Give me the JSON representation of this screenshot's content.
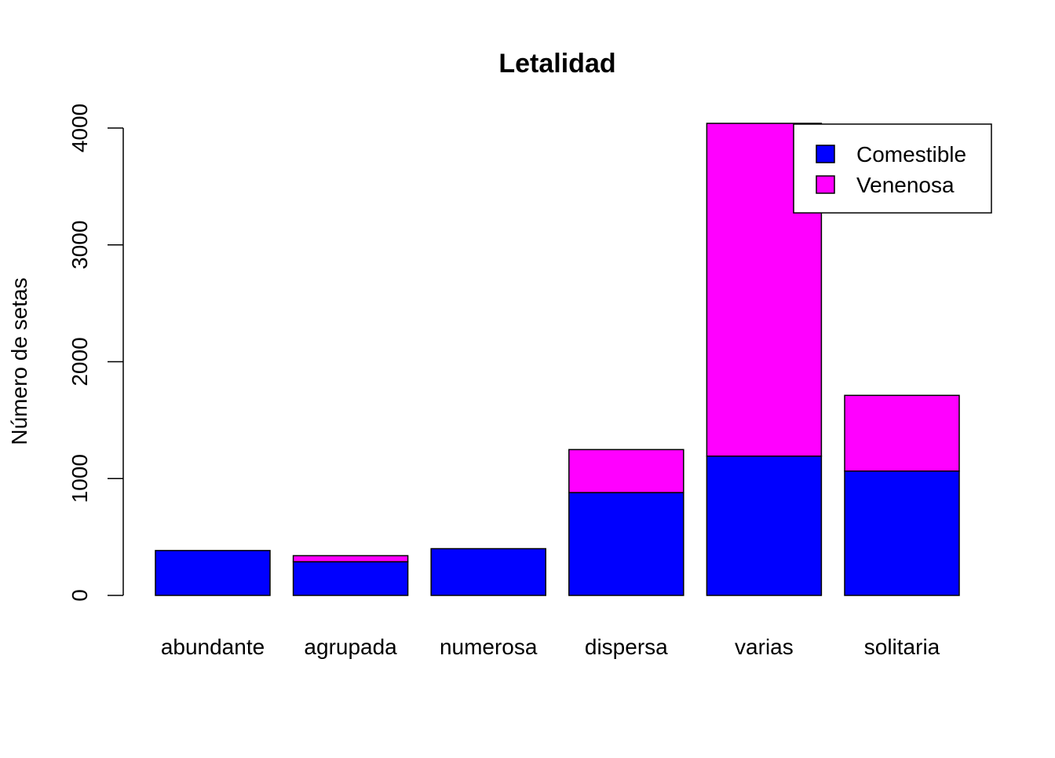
{
  "chart_data": {
    "type": "bar",
    "stacked": true,
    "title": "Letalidad",
    "xlabel": "",
    "ylabel": "Número de setas",
    "ylim": [
      0,
      4000
    ],
    "yticks": [
      0,
      1000,
      2000,
      3000,
      4000
    ],
    "ytick_labels": [
      "0",
      "1000",
      "2000",
      "3000",
      "4000"
    ],
    "categories": [
      "abundante",
      "agrupada",
      "numerosa",
      "dispersa",
      "varias",
      "solitaria"
    ],
    "series": [
      {
        "name": "Comestible",
        "color": "#0000ff",
        "values": [
          384,
          288,
          400,
          880,
          1192,
          1064
        ]
      },
      {
        "name": "Venenosa",
        "color": "#ff00ff",
        "values": [
          0,
          52,
          0,
          368,
          2848,
          648
        ]
      }
    ],
    "grid": false,
    "legend": "top-right"
  }
}
